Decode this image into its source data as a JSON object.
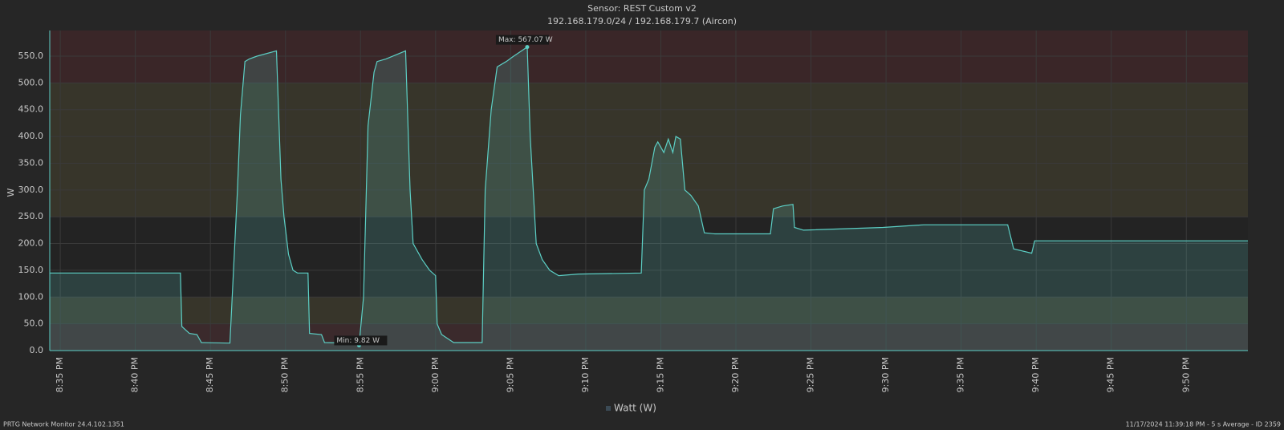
{
  "chart_data": {
    "type": "area",
    "title": "Sensor: REST Custom v2",
    "subtitle": "192.168.179.0/24 / 192.168.179.7 (Aircon)",
    "ylabel": "W",
    "x": [
      1234.3,
      1243.0,
      1243.1,
      1243.6,
      1244.1,
      1244.4,
      1246.3,
      1246.8,
      1247.0,
      1247.3,
      1247.6,
      1248.1,
      1249.4,
      1249.7,
      1249.9,
      1250.2,
      1250.5,
      1250.8,
      1251.5,
      1251.6,
      1252.4,
      1252.6,
      1254.5,
      1254.9,
      1255.2,
      1255.5,
      1255.9,
      1256.1,
      1256.7,
      1258.0,
      1258.3,
      1258.5,
      1259.1,
      1259.6,
      1260.0,
      1260.1,
      1260.4,
      1261.2,
      1263.1,
      1263.3,
      1263.7,
      1264.1,
      1264.7,
      1265.2,
      1266.1,
      1266.3,
      1266.7,
      1267.1,
      1267.6,
      1268.2,
      1269.5,
      1273.7,
      1273.9,
      1274.2,
      1274.6,
      1274.8,
      1275.2,
      1275.5,
      1275.8,
      1276.0,
      1276.3,
      1276.6,
      1277.0,
      1277.5,
      1277.9,
      1278.6,
      1282.3,
      1282.5,
      1283.1,
      1283.8,
      1283.9,
      1284.5,
      1289.8,
      1292.5,
      1298.1,
      1298.5,
      1299.7,
      1299.9,
      1302.1,
      1314.1
    ],
    "series": [
      {
        "name": "Watt (W)",
        "color": "#5ccfc5",
        "values": [
          145,
          145,
          45,
          32,
          30,
          15,
          14,
          300,
          440,
          540,
          545,
          550,
          560,
          320,
          250,
          180,
          150,
          145,
          145,
          32,
          30,
          15,
          14,
          9.82,
          100,
          420,
          520,
          540,
          545,
          560,
          300,
          200,
          170,
          150,
          140,
          50,
          30,
          15,
          15,
          300,
          450,
          530,
          540,
          550,
          567.07,
          400,
          200,
          170,
          150,
          140,
          143,
          145,
          300,
          320,
          380,
          390,
          370,
          395,
          370,
          400,
          395,
          300,
          290,
          270,
          220,
          218,
          218,
          265,
          270,
          273,
          230,
          225,
          230,
          235,
          235,
          190,
          182,
          205,
          205,
          205
        ]
      }
    ],
    "xlim": [
      1234.3,
      1314.1
    ],
    "xticks": [
      {
        "value": 1235,
        "label": "8:35 PM"
      },
      {
        "value": 1240,
        "label": "8:40 PM"
      },
      {
        "value": 1245,
        "label": "8:45 PM"
      },
      {
        "value": 1250,
        "label": "8:50 PM"
      },
      {
        "value": 1255,
        "label": "8:55 PM"
      },
      {
        "value": 1260,
        "label": "9:00 PM"
      },
      {
        "value": 1265,
        "label": "9:05 PM"
      },
      {
        "value": 1270,
        "label": "9:10 PM"
      },
      {
        "value": 1275,
        "label": "9:15 PM"
      },
      {
        "value": 1280,
        "label": "9:20 PM"
      },
      {
        "value": 1285,
        "label": "9:25 PM"
      },
      {
        "value": 1290,
        "label": "9:30 PM"
      },
      {
        "value": 1295,
        "label": "9:35 PM"
      },
      {
        "value": 1300,
        "label": "9:40 PM"
      },
      {
        "value": 1305,
        "label": "9:45 PM"
      },
      {
        "value": 1310,
        "label": "9:50 PM"
      }
    ],
    "ylim": [
      0,
      598
    ],
    "yticks": [
      {
        "value": 0,
        "label": "0.0"
      },
      {
        "value": 50,
        "label": "50.0"
      },
      {
        "value": 100,
        "label": "100.0"
      },
      {
        "value": 150,
        "label": "150.0"
      },
      {
        "value": 200,
        "label": "200.0"
      },
      {
        "value": 250,
        "label": "250.0"
      },
      {
        "value": 300,
        "label": "300.0"
      },
      {
        "value": 350,
        "label": "350.0"
      },
      {
        "value": 400,
        "label": "400.0"
      },
      {
        "value": 450,
        "label": "450.0"
      },
      {
        "value": 500,
        "label": "500.0"
      },
      {
        "value": 550,
        "label": "550.0"
      }
    ],
    "grid": true,
    "bands": [
      {
        "from": 0,
        "to": 50,
        "color": "#3b2a2c"
      },
      {
        "from": 50,
        "to": 100,
        "color": "#37352a"
      },
      {
        "from": 250,
        "to": 500,
        "color": "#37352a"
      },
      {
        "from": 500,
        "to": 598,
        "color": "#3a2628"
      }
    ],
    "annotations": [
      {
        "label": "Max: 567.07 W",
        "x": 1266.1,
        "y": 567.07
      },
      {
        "label": "Min: 9.82 W",
        "x": 1254.9,
        "y": 9.82
      }
    ],
    "legend": "bottom",
    "footer_left": "PRTG Network Monitor 24.4.102.1351",
    "footer_right": "11/17/2024 11:39:18 PM - 5 s Average - ID 2359"
  }
}
